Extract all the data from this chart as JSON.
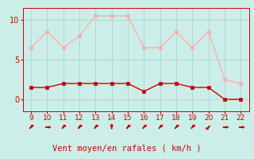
{
  "x": [
    9,
    10,
    11,
    12,
    13,
    14,
    15,
    16,
    17,
    18,
    19,
    20,
    21,
    22
  ],
  "rafales": [
    6.5,
    8.5,
    6.5,
    8.0,
    10.5,
    10.5,
    10.5,
    6.5,
    6.5,
    8.5,
    6.5,
    8.5,
    2.5,
    2.0
  ],
  "moyen": [
    1.5,
    1.5,
    2.0,
    2.0,
    2.0,
    2.0,
    2.0,
    1.0,
    2.0,
    2.0,
    1.5,
    1.5,
    0.0,
    0.0
  ],
  "line_color_moyen": "#cc0000",
  "line_color_rafales": "#ffaaaa",
  "bg_color": "#cceee8",
  "xlabel": "Vent moyen/en rafales ( km/h )",
  "xlabel_color": "#cc0000",
  "xlabel_fontsize": 7.5,
  "tick_color": "#cc0000",
  "yticks": [
    0,
    5,
    10
  ],
  "xticks": [
    9,
    10,
    11,
    12,
    13,
    14,
    15,
    16,
    17,
    18,
    19,
    20,
    21,
    22
  ],
  "ylim": [
    -1.5,
    11.5
  ],
  "xlim": [
    8.5,
    22.5
  ],
  "grid_color": "#aacccc",
  "markersize": 3,
  "arrow_angles_deg": [
    45,
    0,
    45,
    45,
    45,
    90,
    45,
    45,
    45,
    45,
    45,
    225,
    0,
    0
  ]
}
